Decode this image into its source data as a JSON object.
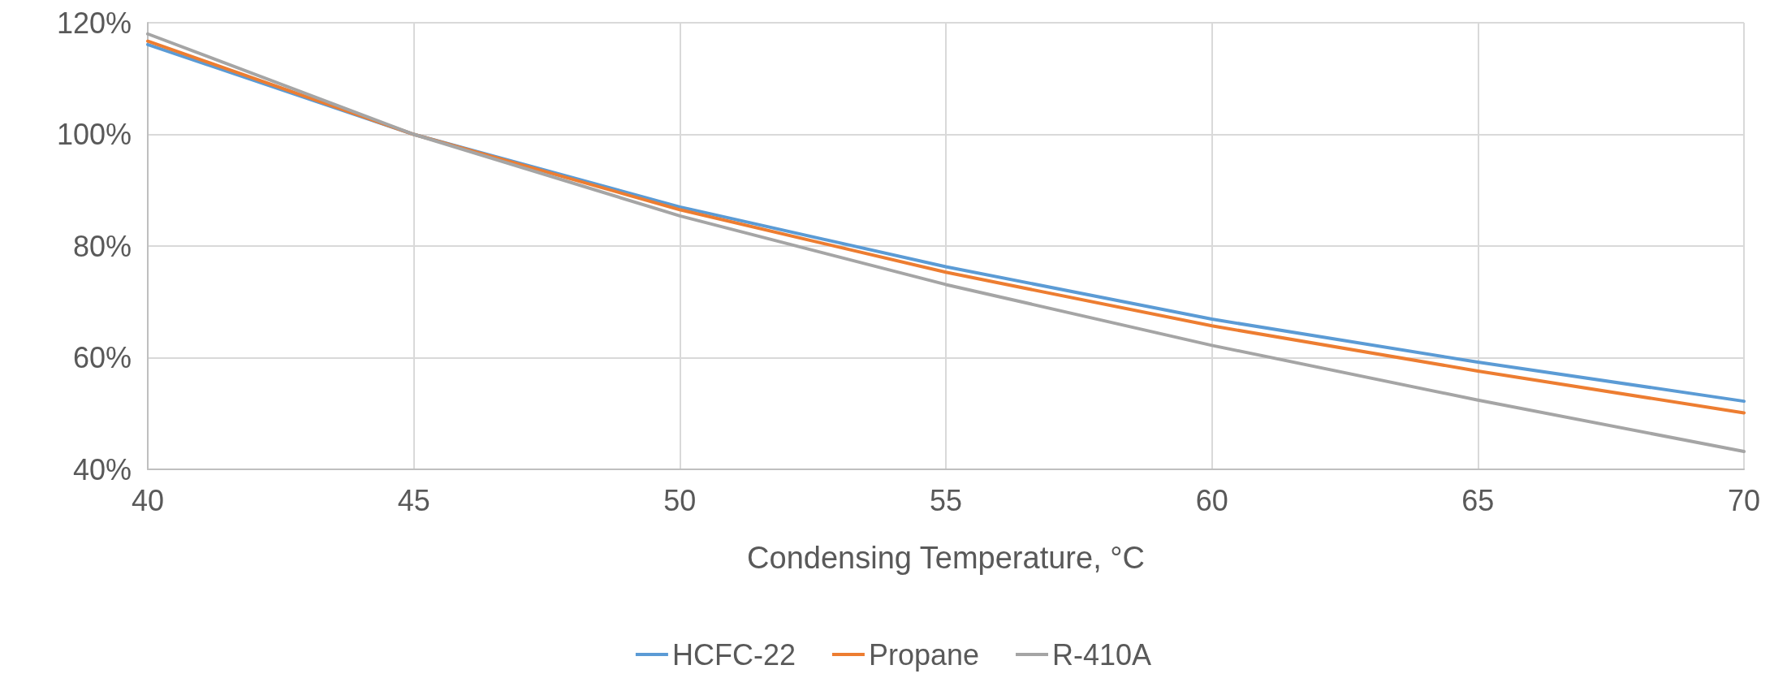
{
  "chart_data": {
    "type": "line",
    "xlabel": "Condensing Temperature, °C",
    "x": [
      40,
      45,
      50,
      55,
      60,
      65,
      70
    ],
    "series": [
      {
        "name": "HCFC-22",
        "color": "#5b9bd5",
        "values": [
          116.1,
          100,
          87.0,
          76.3,
          66.9,
          59.2,
          52.2
        ]
      },
      {
        "name": "Propane",
        "color": "#ed7d31",
        "values": [
          116.7,
          100,
          86.5,
          75.3,
          65.7,
          57.6,
          50.1
        ]
      },
      {
        "name": "R-410A",
        "color": "#a5a5a5",
        "values": [
          118.0,
          100,
          85.4,
          73.1,
          62.2,
          52.4,
          43.2
        ]
      }
    ],
    "xlim": [
      40,
      70
    ],
    "xticks": [
      40,
      45,
      50,
      55,
      60,
      65,
      70
    ],
    "ylim": [
      40,
      120
    ],
    "yticks": [
      {
        "value": 40,
        "label": "40%"
      },
      {
        "value": 60,
        "label": "60%"
      },
      {
        "value": 80,
        "label": "80%"
      },
      {
        "value": 100,
        "label": "100%"
      },
      {
        "value": 120,
        "label": "120%"
      }
    ],
    "grid": true,
    "legend": "bottom",
    "marker": "none",
    "line_style": "solid"
  }
}
